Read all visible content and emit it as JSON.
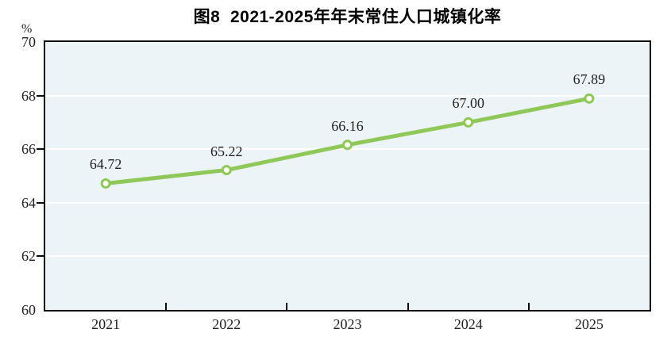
{
  "title": "图8  2021-2025年年末常住人口城镇化率",
  "colors": {
    "line": "#8FC858",
    "marker_fill": "#FDFEFB",
    "plot_background": "#EDF4F8",
    "gridline": "#FFFFFF",
    "axis": "#0A0A0A",
    "text": "#222222"
  },
  "chart_data": {
    "type": "line",
    "title": "图8  2021-2025年年末常住人口城镇化率",
    "unit_label": "%",
    "categories": [
      "2021",
      "2022",
      "2023",
      "2024",
      "2025"
    ],
    "values": [
      64.72,
      65.22,
      66.16,
      67.0,
      67.89
    ],
    "value_labels": [
      "64.72",
      "65.22",
      "66.16",
      "67.00",
      "67.89"
    ],
    "xlabel": "",
    "ylabel": "%",
    "ylim": [
      60,
      70
    ],
    "yticks": [
      60,
      62,
      64,
      66,
      68,
      70
    ],
    "ytick_labels": [
      "60",
      "62",
      "64",
      "66",
      "68",
      "70"
    ],
    "grid": true,
    "legend_position": "none"
  }
}
